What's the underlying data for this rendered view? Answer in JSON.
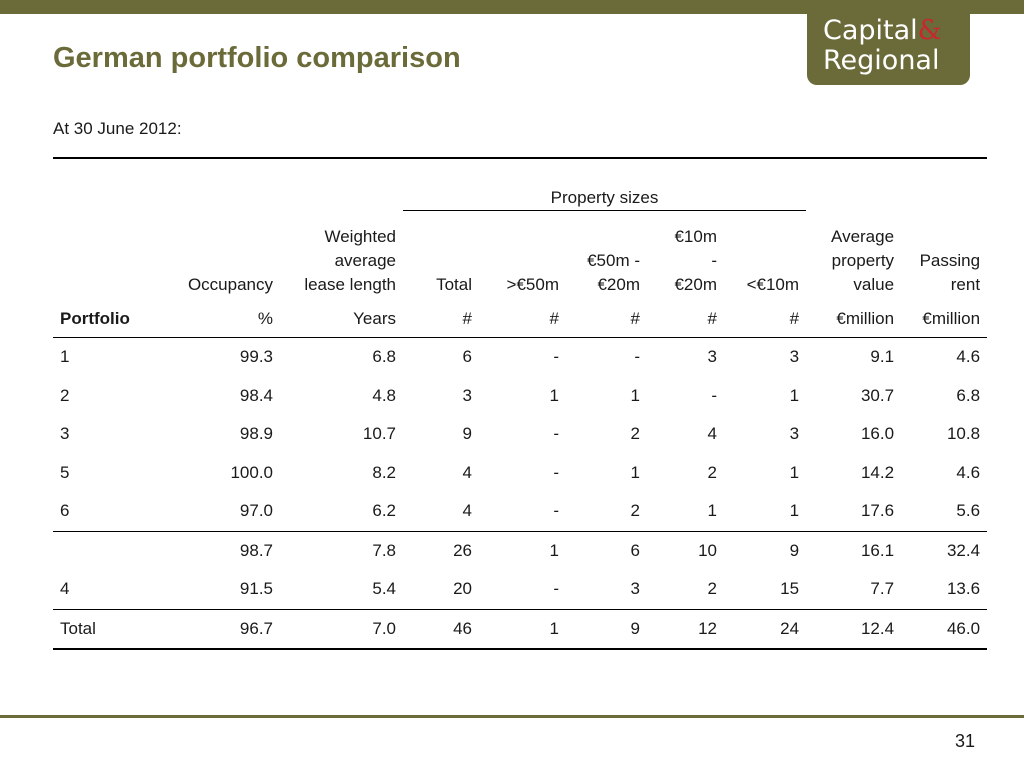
{
  "title": "German portfolio comparison",
  "logo": {
    "line1": "Capital",
    "amp": "&",
    "line2": "Regional"
  },
  "subtitle": "At 30 June 2012:",
  "group_header": "Property sizes",
  "headers": {
    "occupancy": "Occupancy",
    "wall_1": "Weighted",
    "wall_2": "average",
    "wall_3": "lease length",
    "total": "Total",
    "gt50": ">€50m",
    "r50_1": "€50m -",
    "r50_2": "€20m",
    "r10_1": "€10m",
    "r10_2": "-",
    "r10_3": "€20m",
    "lt10": "<€10m",
    "avg_1": "Average",
    "avg_2": "property",
    "avg_3": "value",
    "rent_1": "Passing",
    "rent_2": "rent"
  },
  "units": [
    "Portfolio",
    "%",
    "Years",
    "#",
    "#",
    "#",
    "#",
    "#",
    "€million",
    "€million"
  ],
  "rows": [
    [
      "1",
      "99.3",
      "6.8",
      "6",
      "-",
      "-",
      "3",
      "3",
      "9.1",
      "4.6"
    ],
    [
      "2",
      "98.4",
      "4.8",
      "3",
      "1",
      "1",
      "-",
      "1",
      "30.7",
      "6.8"
    ],
    [
      "3",
      "98.9",
      "10.7",
      "9",
      "-",
      "2",
      "4",
      "3",
      "16.0",
      "10.8"
    ],
    [
      "5",
      "100.0",
      "8.2",
      "4",
      "-",
      "1",
      "2",
      "1",
      "14.2",
      "4.6"
    ],
    [
      "6",
      "97.0",
      "6.2",
      "4",
      "-",
      "2",
      "1",
      "1",
      "17.6",
      "5.6"
    ],
    [
      "",
      "98.7",
      "7.8",
      "26",
      "1",
      "6",
      "10",
      "9",
      "16.1",
      "32.4"
    ],
    [
      "4",
      "91.5",
      "5.4",
      "20",
      "-",
      "3",
      "2",
      "15",
      "7.7",
      "13.6"
    ],
    [
      "Total",
      "96.7",
      "7.0",
      "46",
      "1",
      "9",
      "12",
      "24",
      "12.4",
      "46.0"
    ]
  ],
  "page_number": "31"
}
